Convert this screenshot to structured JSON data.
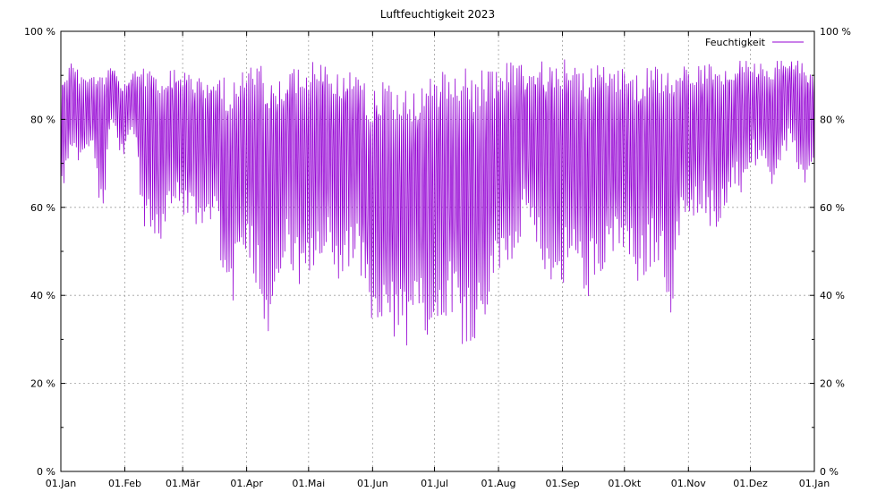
{
  "chart_data": {
    "type": "line",
    "title": "Luftfeuchtigkeit 2023",
    "xlabel": "",
    "ylabel": "",
    "ylim": [
      0,
      100
    ],
    "xlim": [
      "2023-01-01",
      "2024-01-01"
    ],
    "y_ticks": [
      "0 %",
      "20 %",
      "40 %",
      "60 %",
      "80 %",
      "100 %"
    ],
    "y2_ticks": [
      "0 %",
      "20 %",
      "40 %",
      "60 %",
      "80 %",
      "100 %"
    ],
    "x_ticks": [
      "01.Jan",
      "01.Feb",
      "01.Mär",
      "01.Apr",
      "01.Mai",
      "01.Jun",
      "01.Jul",
      "01.Aug",
      "01.Sep",
      "01.Okt",
      "01.Nov",
      "01.Dez",
      "01.Jan"
    ],
    "x_tick_dates": [
      "2023-01-01",
      "2023-02-01",
      "2023-03-01",
      "2023-04-01",
      "2023-05-01",
      "2023-06-01",
      "2023-07-01",
      "2023-08-01",
      "2023-09-01",
      "2023-10-01",
      "2023-11-01",
      "2023-12-01",
      "2024-01-01"
    ],
    "grid": true,
    "legend_position": "top-right",
    "series_color": "#9400d3",
    "series": [
      {
        "name": "Feuchtigkeit",
        "daily_range": {
          "dates": [
            "2023-01-01",
            "2023-01-06",
            "2023-01-11",
            "2023-01-16",
            "2023-01-21",
            "2023-01-26",
            "2023-01-31",
            "2023-02-05",
            "2023-02-10",
            "2023-02-15",
            "2023-02-20",
            "2023-02-25",
            "2023-03-02",
            "2023-03-07",
            "2023-03-12",
            "2023-03-17",
            "2023-03-22",
            "2023-03-27",
            "2023-04-01",
            "2023-04-06",
            "2023-04-11",
            "2023-04-16",
            "2023-04-21",
            "2023-04-26",
            "2023-05-01",
            "2023-05-06",
            "2023-05-11",
            "2023-05-16",
            "2023-05-21",
            "2023-05-26",
            "2023-05-31",
            "2023-06-05",
            "2023-06-10",
            "2023-06-15",
            "2023-06-20",
            "2023-06-25",
            "2023-06-30",
            "2023-07-05",
            "2023-07-10",
            "2023-07-15",
            "2023-07-20",
            "2023-07-25",
            "2023-07-30",
            "2023-08-04",
            "2023-08-09",
            "2023-08-14",
            "2023-08-19",
            "2023-08-24",
            "2023-08-29",
            "2023-09-03",
            "2023-09-08",
            "2023-09-13",
            "2023-09-18",
            "2023-09-23",
            "2023-09-28",
            "2023-10-03",
            "2023-10-08",
            "2023-10-13",
            "2023-10-18",
            "2023-10-23",
            "2023-10-28",
            "2023-11-02",
            "2023-11-07",
            "2023-11-12",
            "2023-11-17",
            "2023-11-22",
            "2023-11-27",
            "2023-12-02",
            "2023-12-07",
            "2023-12-12",
            "2023-12-17",
            "2023-12-22",
            "2023-12-27",
            "2023-12-31"
          ],
          "min": [
            62,
            70,
            68,
            74,
            57,
            80,
            70,
            78,
            55,
            51,
            52,
            60,
            58,
            55,
            54,
            60,
            35,
            40,
            50,
            42,
            30,
            40,
            48,
            40,
            39,
            45,
            48,
            42,
            45,
            46,
            30,
            28,
            30,
            27,
            28,
            32,
            27,
            35,
            36,
            28,
            29,
            31,
            40,
            47,
            46,
            56,
            47,
            45,
            37,
            45,
            43,
            39,
            44,
            48,
            47,
            45,
            41,
            46,
            48,
            32,
            53,
            55,
            60,
            55,
            56,
            64,
            62,
            70,
            67,
            61,
            70,
            75,
            59,
            68
          ],
          "max": [
            90,
            93,
            91,
            90,
            92,
            92,
            88,
            91,
            92,
            91,
            90,
            92,
            92,
            90,
            89,
            91,
            90,
            89,
            92,
            93,
            91,
            89,
            92,
            93,
            93,
            93,
            92,
            91,
            92,
            91,
            87,
            90,
            88,
            89,
            88,
            87,
            90,
            91,
            89,
            92,
            90,
            93,
            92,
            93,
            93,
            92,
            94,
            93,
            92,
            94,
            93,
            92,
            93,
            92,
            93,
            92,
            91,
            93,
            92,
            92,
            93,
            93,
            92,
            93,
            92,
            93,
            94,
            93,
            93,
            93,
            95,
            94,
            93,
            92
          ]
        }
      }
    ]
  }
}
